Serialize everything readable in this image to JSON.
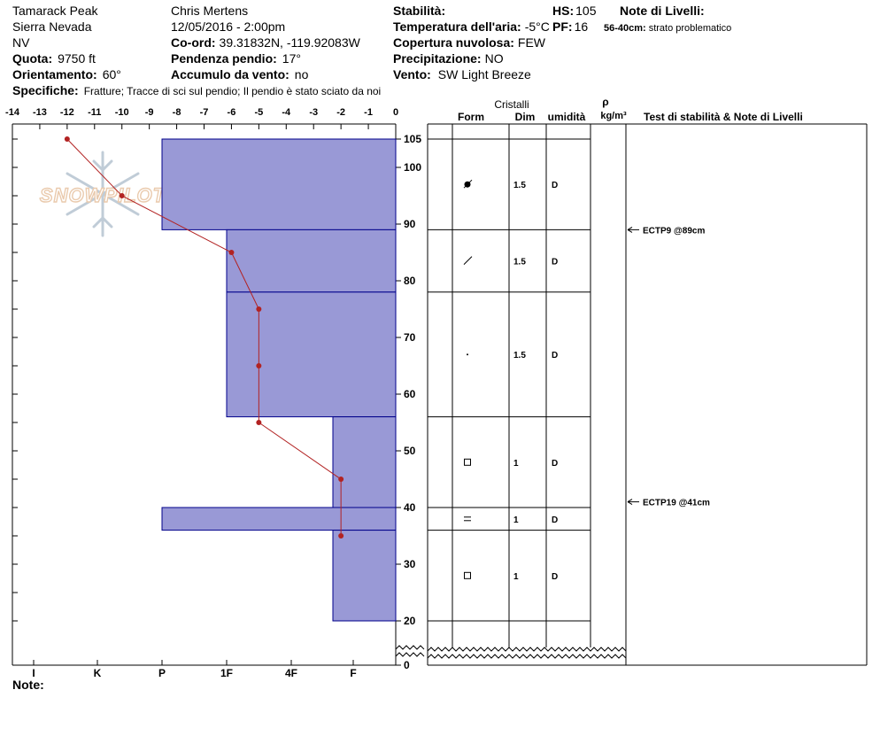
{
  "header": {
    "location": "Tamarack Peak",
    "range": "Sierra Nevada",
    "state": "NV",
    "elevation_label": "Quota:",
    "elevation_value": "9750 ft",
    "aspect_label": "Orientamento:",
    "aspect_value": "60°",
    "observer": "Chris Mertens",
    "datetime": "12/05/2016 - 2:00pm",
    "coord_label": "Co-ord:",
    "coord_value": "39.31832N, -119.92083W",
    "slope_label": "Pendenza pendio:",
    "slope_value": "17°",
    "wind_loading_label": "Accumulo da vento:",
    "wind_loading_value": "no",
    "stability_label": "Stabilità:",
    "air_temp_label": "Temperatura dell'aria:",
    "air_temp_value": "-5°C",
    "sky_label": "Copertura nuvolosa:",
    "sky_value": "FEW",
    "precip_label": "Precipitazione:",
    "precip_value": "NO",
    "wind_label": "Vento:",
    "wind_value": "SW  Light Breeze",
    "hs_label": "HS:",
    "hs_value": "105",
    "pf_label": "PF:",
    "pf_value": "16",
    "layer_notes_label": "Note di Livelli:",
    "layer_note_range": "56-40cm:",
    "layer_note_text": "strato problematico",
    "specifics_label": "Specifiche:",
    "specifics_value": "Fratture;  Tracce di sci sul pendio;  Il pendio è stato sciato da noi"
  },
  "watermark": "SNOWPILOT",
  "notes_label": "Note:",
  "table_headers": {
    "crystals": "Cristalli",
    "form": "Form",
    "size": "Dim",
    "moisture": "umidità",
    "rho": "ρ",
    "density_unit": "kg/m³",
    "tests": "Test di stabilità & Note di Livelli"
  },
  "chart_data": {
    "type": "snow_profile",
    "temp_axis": {
      "ticks": [
        "-14",
        "-13",
        "-12",
        "-11",
        "-10",
        "-9",
        "-8",
        "-7",
        "-6",
        "-5",
        "-4",
        "-3",
        "-2",
        "-1",
        "0"
      ],
      "min": -14,
      "max": 0
    },
    "hardness_axis": {
      "labels": [
        "I",
        "K",
        "P",
        "1F",
        "4F",
        "F"
      ]
    },
    "height_axis": {
      "ticks": [
        "105",
        "100",
        "90",
        "80",
        "70",
        "60",
        "50",
        "40",
        "30",
        "20",
        "0"
      ]
    },
    "layers": [
      {
        "top": 105,
        "bottom": 89,
        "hardness": "P",
        "form": "melt-freeze",
        "size": "1.5",
        "moisture": "D"
      },
      {
        "top": 89,
        "bottom": 78,
        "hardness": "1F",
        "form": "decomposing",
        "size": "1.5",
        "moisture": "D"
      },
      {
        "top": 78,
        "bottom": 56,
        "hardness": "1F",
        "form": "precipitation-particles",
        "size": "1.5",
        "moisture": "D"
      },
      {
        "top": 56,
        "bottom": 40,
        "hardness": "F+",
        "form": "faceted",
        "size": "1",
        "moisture": "D"
      },
      {
        "top": 40,
        "bottom": 36,
        "hardness": "P",
        "form": "surface-hoar",
        "size": "1",
        "moisture": "D"
      },
      {
        "top": 36,
        "bottom": 20,
        "hardness": "F+",
        "form": "faceted",
        "size": "1",
        "moisture": "D"
      }
    ],
    "temperature_profile": [
      {
        "height": 105,
        "temp": -12
      },
      {
        "height": 95,
        "temp": -10
      },
      {
        "height": 85,
        "temp": -6
      },
      {
        "height": 75,
        "temp": -5
      },
      {
        "height": 65,
        "temp": -5
      },
      {
        "height": 55,
        "temp": -5
      },
      {
        "height": 45,
        "temp": -2
      },
      {
        "height": 35,
        "temp": -2
      }
    ],
    "stability_tests": [
      {
        "height": 89,
        "label": "ECTP9 @89cm"
      },
      {
        "height": 41,
        "label": "ECTP19 @41cm"
      }
    ],
    "colors": {
      "layer_fill": "#9999d6",
      "layer_stroke": "#00008b",
      "temp_line": "#b22222"
    }
  }
}
